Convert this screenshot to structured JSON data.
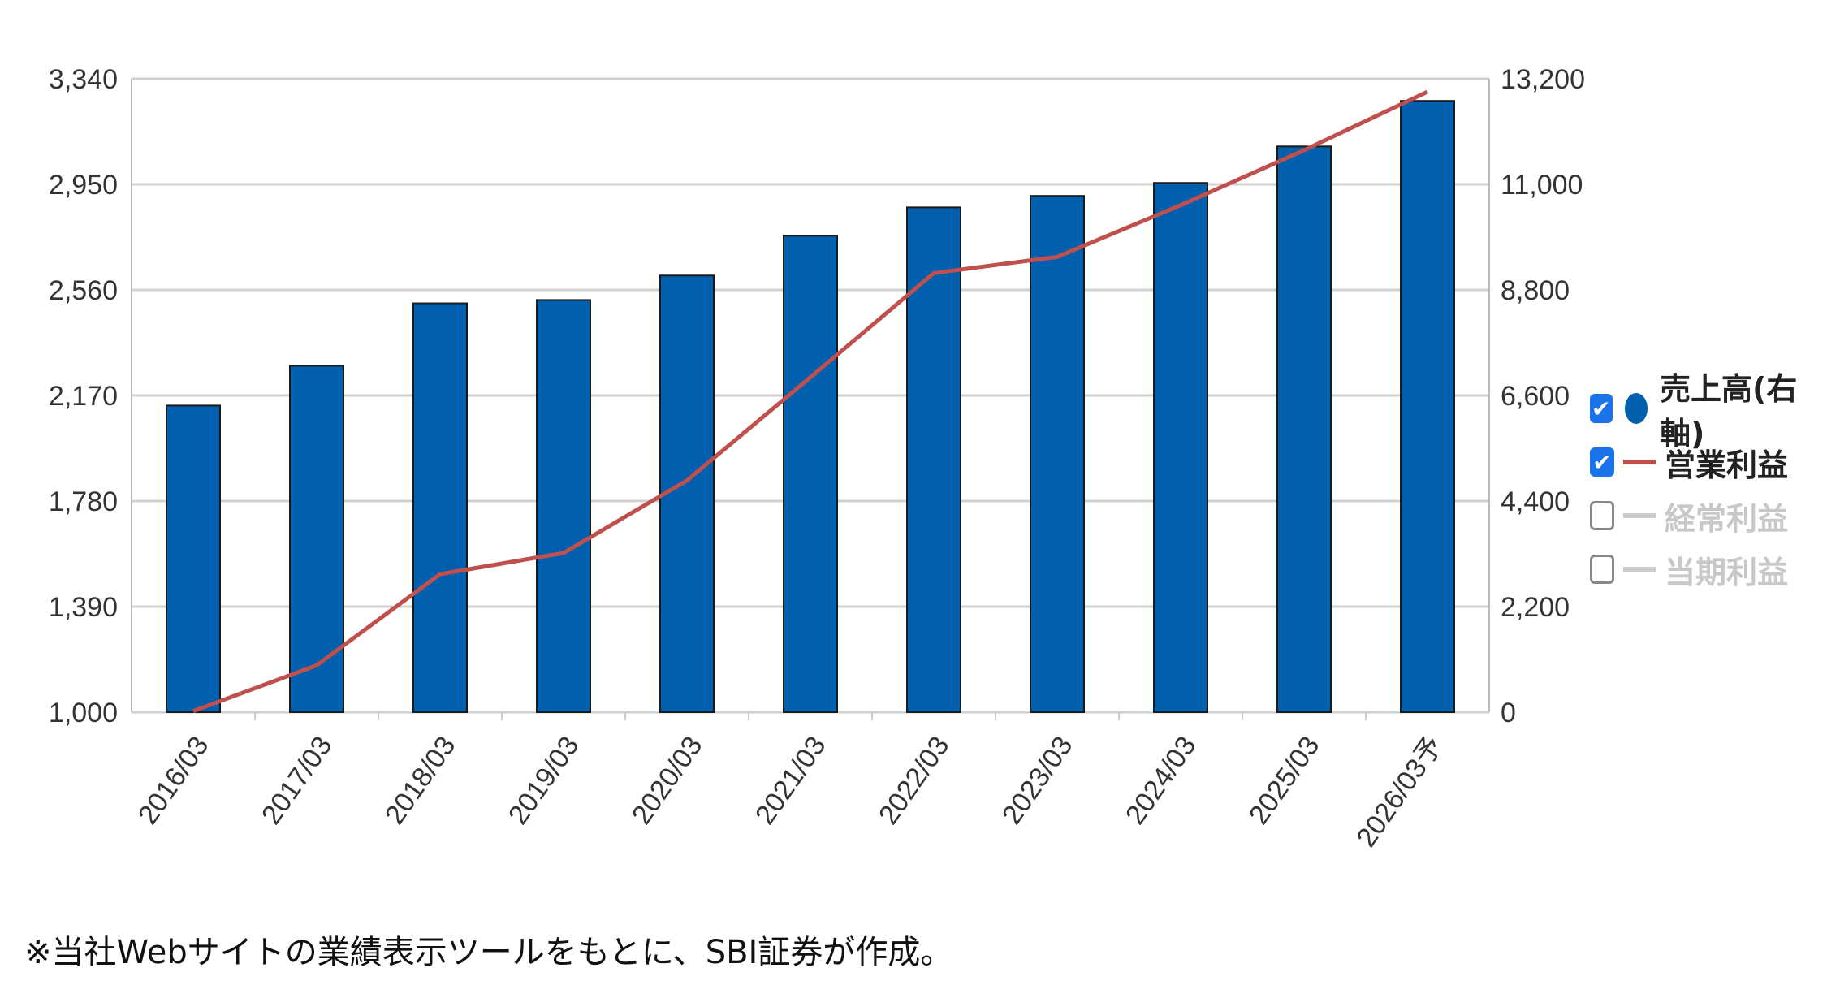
{
  "chart_data": {
    "type": "bar+line",
    "categories": [
      "2016/03",
      "2017/03",
      "2018/03",
      "2019/03",
      "2020/03",
      "2021/03",
      "2022/03",
      "2023/03",
      "2024/03",
      "2025/03",
      "2026/03予"
    ],
    "series": [
      {
        "name": "売上高(右軸)",
        "type": "bar",
        "axis": "right",
        "color": "#0060ad",
        "values": [
          6390,
          7220,
          8520,
          8590,
          9100,
          9930,
          10520,
          10760,
          11030,
          11790,
          12740
        ]
      },
      {
        "name": "営業利益",
        "type": "line",
        "axis": "left",
        "color": "#c0504d",
        "values": [
          1004,
          1173,
          1510,
          1588,
          1856,
          2237,
          2622,
          2682,
          2873,
          3076,
          3292
        ]
      }
    ],
    "left_axis": {
      "min": 1000,
      "max": 3340,
      "ticks": [
        "1,000",
        "1,390",
        "1,780",
        "2,170",
        "2,560",
        "2,950",
        "3,340"
      ]
    },
    "right_axis": {
      "min": 0,
      "max": 13200,
      "ticks": [
        "0",
        "2,200",
        "4,400",
        "6,600",
        "8,800",
        "11,000",
        "13,200"
      ]
    },
    "grid": true,
    "legend_placement": "right"
  },
  "legend": [
    {
      "label": "売上高(右軸)",
      "checked": true,
      "marker": "dot",
      "color": "#0060ad"
    },
    {
      "label": "営業利益",
      "checked": true,
      "marker": "line",
      "color": "#c0504d"
    },
    {
      "label": "経常利益",
      "checked": false,
      "marker": "line",
      "color": "#cccccc"
    },
    {
      "label": "当期利益",
      "checked": false,
      "marker": "line",
      "color": "#cccccc"
    }
  ],
  "note": "※当社Webサイトの業績表示ツールをもとに、SBI証券が作成。"
}
